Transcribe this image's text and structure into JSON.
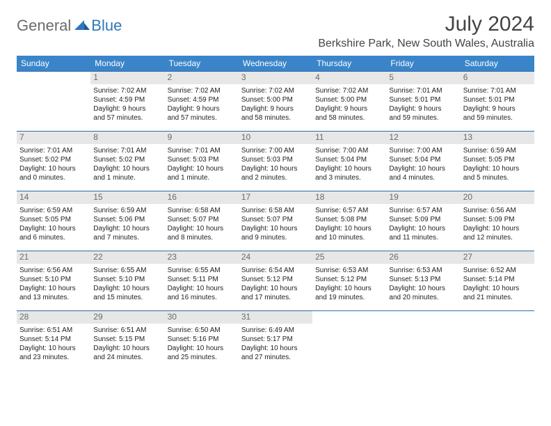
{
  "logo": {
    "text1": "General",
    "text2": "Blue"
  },
  "title": "July 2024",
  "location": "Berkshire Park, New South Wales, Australia",
  "colors": {
    "header_bg": "#3a85c9",
    "header_fg": "#ffffff",
    "row_border": "#2f6aa8",
    "daynum_bg": "#e7e7e7",
    "daynum_fg": "#6a6a6a",
    "logo_gray": "#6b6b6b",
    "logo_blue": "#2f77bb"
  },
  "weekdays": [
    "Sunday",
    "Monday",
    "Tuesday",
    "Wednesday",
    "Thursday",
    "Friday",
    "Saturday"
  ],
  "weeks": [
    [
      null,
      {
        "n": "1",
        "sr": "Sunrise: 7:02 AM",
        "ss": "Sunset: 4:59 PM",
        "d1": "Daylight: 9 hours",
        "d2": "and 57 minutes."
      },
      {
        "n": "2",
        "sr": "Sunrise: 7:02 AM",
        "ss": "Sunset: 4:59 PM",
        "d1": "Daylight: 9 hours",
        "d2": "and 57 minutes."
      },
      {
        "n": "3",
        "sr": "Sunrise: 7:02 AM",
        "ss": "Sunset: 5:00 PM",
        "d1": "Daylight: 9 hours",
        "d2": "and 58 minutes."
      },
      {
        "n": "4",
        "sr": "Sunrise: 7:02 AM",
        "ss": "Sunset: 5:00 PM",
        "d1": "Daylight: 9 hours",
        "d2": "and 58 minutes."
      },
      {
        "n": "5",
        "sr": "Sunrise: 7:01 AM",
        "ss": "Sunset: 5:01 PM",
        "d1": "Daylight: 9 hours",
        "d2": "and 59 minutes."
      },
      {
        "n": "6",
        "sr": "Sunrise: 7:01 AM",
        "ss": "Sunset: 5:01 PM",
        "d1": "Daylight: 9 hours",
        "d2": "and 59 minutes."
      }
    ],
    [
      {
        "n": "7",
        "sr": "Sunrise: 7:01 AM",
        "ss": "Sunset: 5:02 PM",
        "d1": "Daylight: 10 hours",
        "d2": "and 0 minutes."
      },
      {
        "n": "8",
        "sr": "Sunrise: 7:01 AM",
        "ss": "Sunset: 5:02 PM",
        "d1": "Daylight: 10 hours",
        "d2": "and 1 minute."
      },
      {
        "n": "9",
        "sr": "Sunrise: 7:01 AM",
        "ss": "Sunset: 5:03 PM",
        "d1": "Daylight: 10 hours",
        "d2": "and 1 minute."
      },
      {
        "n": "10",
        "sr": "Sunrise: 7:00 AM",
        "ss": "Sunset: 5:03 PM",
        "d1": "Daylight: 10 hours",
        "d2": "and 2 minutes."
      },
      {
        "n": "11",
        "sr": "Sunrise: 7:00 AM",
        "ss": "Sunset: 5:04 PM",
        "d1": "Daylight: 10 hours",
        "d2": "and 3 minutes."
      },
      {
        "n": "12",
        "sr": "Sunrise: 7:00 AM",
        "ss": "Sunset: 5:04 PM",
        "d1": "Daylight: 10 hours",
        "d2": "and 4 minutes."
      },
      {
        "n": "13",
        "sr": "Sunrise: 6:59 AM",
        "ss": "Sunset: 5:05 PM",
        "d1": "Daylight: 10 hours",
        "d2": "and 5 minutes."
      }
    ],
    [
      {
        "n": "14",
        "sr": "Sunrise: 6:59 AM",
        "ss": "Sunset: 5:05 PM",
        "d1": "Daylight: 10 hours",
        "d2": "and 6 minutes."
      },
      {
        "n": "15",
        "sr": "Sunrise: 6:59 AM",
        "ss": "Sunset: 5:06 PM",
        "d1": "Daylight: 10 hours",
        "d2": "and 7 minutes."
      },
      {
        "n": "16",
        "sr": "Sunrise: 6:58 AM",
        "ss": "Sunset: 5:07 PM",
        "d1": "Daylight: 10 hours",
        "d2": "and 8 minutes."
      },
      {
        "n": "17",
        "sr": "Sunrise: 6:58 AM",
        "ss": "Sunset: 5:07 PM",
        "d1": "Daylight: 10 hours",
        "d2": "and 9 minutes."
      },
      {
        "n": "18",
        "sr": "Sunrise: 6:57 AM",
        "ss": "Sunset: 5:08 PM",
        "d1": "Daylight: 10 hours",
        "d2": "and 10 minutes."
      },
      {
        "n": "19",
        "sr": "Sunrise: 6:57 AM",
        "ss": "Sunset: 5:09 PM",
        "d1": "Daylight: 10 hours",
        "d2": "and 11 minutes."
      },
      {
        "n": "20",
        "sr": "Sunrise: 6:56 AM",
        "ss": "Sunset: 5:09 PM",
        "d1": "Daylight: 10 hours",
        "d2": "and 12 minutes."
      }
    ],
    [
      {
        "n": "21",
        "sr": "Sunrise: 6:56 AM",
        "ss": "Sunset: 5:10 PM",
        "d1": "Daylight: 10 hours",
        "d2": "and 13 minutes."
      },
      {
        "n": "22",
        "sr": "Sunrise: 6:55 AM",
        "ss": "Sunset: 5:10 PM",
        "d1": "Daylight: 10 hours",
        "d2": "and 15 minutes."
      },
      {
        "n": "23",
        "sr": "Sunrise: 6:55 AM",
        "ss": "Sunset: 5:11 PM",
        "d1": "Daylight: 10 hours",
        "d2": "and 16 minutes."
      },
      {
        "n": "24",
        "sr": "Sunrise: 6:54 AM",
        "ss": "Sunset: 5:12 PM",
        "d1": "Daylight: 10 hours",
        "d2": "and 17 minutes."
      },
      {
        "n": "25",
        "sr": "Sunrise: 6:53 AM",
        "ss": "Sunset: 5:12 PM",
        "d1": "Daylight: 10 hours",
        "d2": "and 19 minutes."
      },
      {
        "n": "26",
        "sr": "Sunrise: 6:53 AM",
        "ss": "Sunset: 5:13 PM",
        "d1": "Daylight: 10 hours",
        "d2": "and 20 minutes."
      },
      {
        "n": "27",
        "sr": "Sunrise: 6:52 AM",
        "ss": "Sunset: 5:14 PM",
        "d1": "Daylight: 10 hours",
        "d2": "and 21 minutes."
      }
    ],
    [
      {
        "n": "28",
        "sr": "Sunrise: 6:51 AM",
        "ss": "Sunset: 5:14 PM",
        "d1": "Daylight: 10 hours",
        "d2": "and 23 minutes."
      },
      {
        "n": "29",
        "sr": "Sunrise: 6:51 AM",
        "ss": "Sunset: 5:15 PM",
        "d1": "Daylight: 10 hours",
        "d2": "and 24 minutes."
      },
      {
        "n": "30",
        "sr": "Sunrise: 6:50 AM",
        "ss": "Sunset: 5:16 PM",
        "d1": "Daylight: 10 hours",
        "d2": "and 25 minutes."
      },
      {
        "n": "31",
        "sr": "Sunrise: 6:49 AM",
        "ss": "Sunset: 5:17 PM",
        "d1": "Daylight: 10 hours",
        "d2": "and 27 minutes."
      },
      null,
      null,
      null
    ]
  ]
}
